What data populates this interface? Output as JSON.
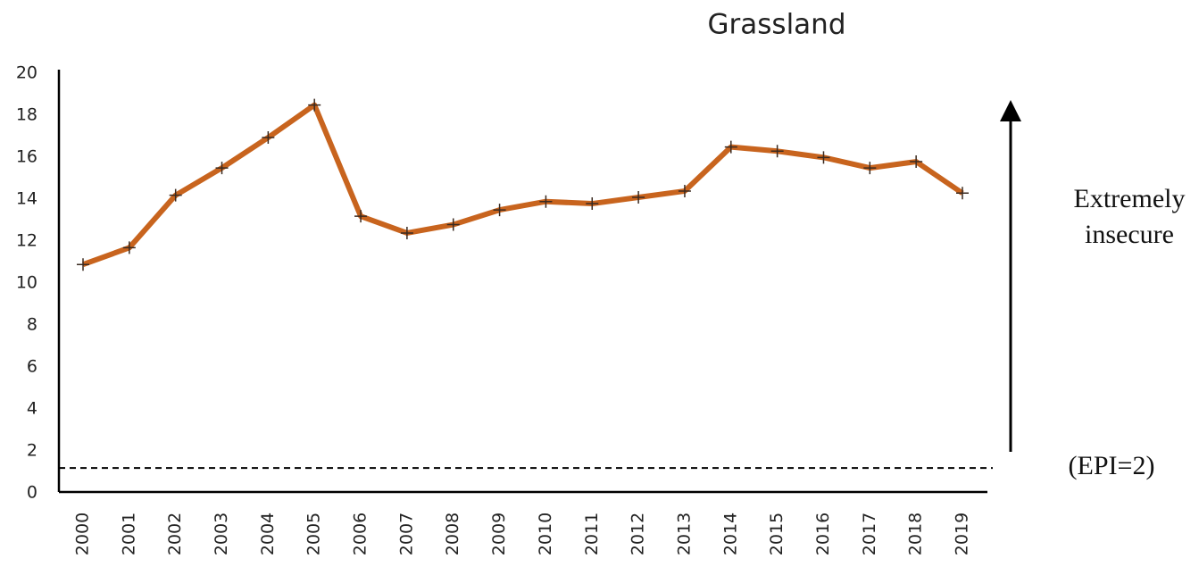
{
  "chart_data": {
    "type": "line",
    "title": "Grassland",
    "categories": [
      "2000",
      "2001",
      "2002",
      "2003",
      "2004",
      "2005",
      "2006",
      "2007",
      "2008",
      "2009",
      "2010",
      "2011",
      "2012",
      "2013",
      "2014",
      "2015",
      "2016",
      "2017",
      "2018",
      "2019"
    ],
    "series": [
      {
        "color": "#c8641e",
        "values": [
          10.8,
          11.6,
          14.1,
          15.4,
          16.85,
          18.4,
          13.1,
          12.3,
          12.7,
          13.4,
          13.8,
          13.7,
          14.0,
          14.3,
          16.4,
          16.2,
          15.9,
          15.4,
          15.7,
          14.2
        ]
      }
    ],
    "ylim": [
      0,
      20
    ],
    "yticks": [
      0,
      2,
      4,
      6,
      8,
      10,
      12,
      14,
      16,
      18,
      20
    ],
    "grid": false,
    "reference_line": 1.1,
    "annotations": [
      "Extremely insecure",
      "(EPI=2)"
    ]
  }
}
